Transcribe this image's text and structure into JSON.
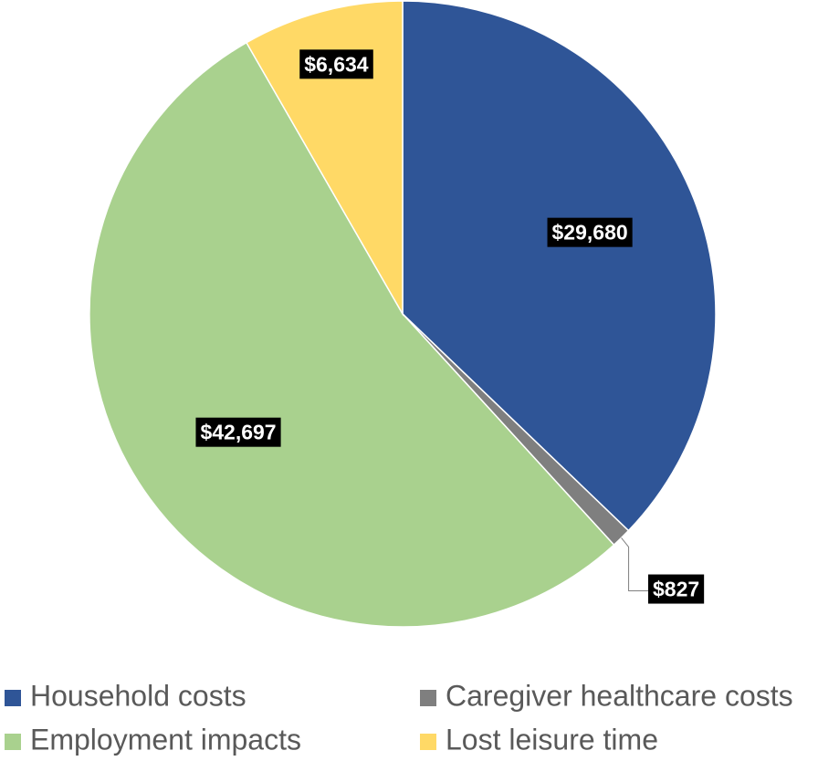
{
  "chart_data": {
    "type": "pie",
    "categories": [
      "Household costs",
      "Caregiver healthcare costs",
      "Employment impacts",
      "Lost leisure time"
    ],
    "values": [
      29680,
      827,
      42697,
      6634
    ],
    "value_labels": [
      "$29,680",
      "$827",
      "$42,697",
      "$6,634"
    ],
    "colors": [
      "#2f5597",
      "#7f7f7f",
      "#a9d18e",
      "#ffd966"
    ],
    "legend": "bottom"
  }
}
